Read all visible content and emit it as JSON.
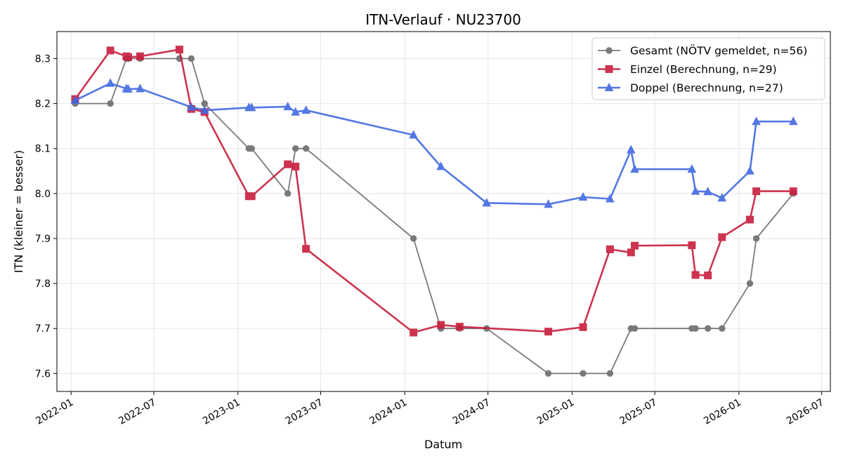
{
  "chart_data": {
    "type": "line",
    "title": "ITN-Verlauf · NU23700",
    "xlabel": "Datum",
    "ylabel": "ITN  (kleiner = besser)",
    "xlim": [
      "2021-12-01",
      "2026-07-20"
    ],
    "ylim": [
      7.56,
      8.36
    ],
    "x_ticks": [
      "2022-01",
      "2022-07",
      "2023-01",
      "2023-07",
      "2024-01",
      "2024-07",
      "2025-01",
      "2025-07",
      "2026-01",
      "2026-07"
    ],
    "y_ticks": [
      "7.6",
      "7.7",
      "7.8",
      "7.9",
      "8.0",
      "8.1",
      "8.2",
      "8.3"
    ],
    "grid": true,
    "legend_position": "top-right",
    "series": [
      {
        "name": "Gesamt (NÖTV gemeldet, n=56)",
        "color": "#555555",
        "marker": "circle",
        "points": [
          [
            "2022-01-10",
            8.2
          ],
          [
            "2022-03-28",
            8.2
          ],
          [
            "2022-05-02",
            8.3
          ],
          [
            "2022-05-06",
            8.3
          ],
          [
            "2022-06-01",
            8.3
          ],
          [
            "2022-08-26",
            8.3
          ],
          [
            "2022-09-21",
            8.3
          ],
          [
            "2022-10-20",
            8.2
          ],
          [
            "2023-01-25",
            8.1
          ],
          [
            "2023-01-31",
            8.1
          ],
          [
            "2023-04-20",
            8.0
          ],
          [
            "2023-05-07",
            8.1
          ],
          [
            "2023-05-30",
            8.1
          ],
          [
            "2024-01-20",
            7.9
          ],
          [
            "2024-03-20",
            7.7
          ],
          [
            "2024-04-30",
            7.7
          ],
          [
            "2024-06-28",
            7.7
          ],
          [
            "2024-11-10",
            7.6
          ],
          [
            "2025-01-25",
            7.6
          ],
          [
            "2025-03-25",
            7.6
          ],
          [
            "2025-05-10",
            7.7
          ],
          [
            "2025-05-18",
            7.7
          ],
          [
            "2025-09-20",
            7.7
          ],
          [
            "2025-09-28",
            7.7
          ],
          [
            "2025-10-25",
            7.7
          ],
          [
            "2025-11-25",
            7.7
          ],
          [
            "2026-01-25",
            7.8
          ],
          [
            "2026-02-08",
            7.9
          ],
          [
            "2026-04-30",
            8.0
          ]
        ]
      },
      {
        "name": "Einzel (Berechnung, n=29)",
        "color": "#c81e3c",
        "marker": "square",
        "points": [
          [
            "2022-01-10",
            8.21
          ],
          [
            "2022-03-28",
            8.318
          ],
          [
            "2022-05-02",
            8.305
          ],
          [
            "2022-05-06",
            8.303
          ],
          [
            "2022-06-01",
            8.305
          ],
          [
            "2022-08-26",
            8.32
          ],
          [
            "2022-09-21",
            8.188
          ],
          [
            "2022-10-20",
            8.181
          ],
          [
            "2023-01-25",
            7.994
          ],
          [
            "2023-01-31",
            7.994
          ],
          [
            "2023-04-20",
            8.065
          ],
          [
            "2023-05-07",
            8.06
          ],
          [
            "2023-05-30",
            7.877
          ],
          [
            "2024-01-20",
            7.691
          ],
          [
            "2024-03-20",
            7.708
          ],
          [
            "2024-04-30",
            7.704
          ],
          [
            "2024-11-10",
            7.693
          ],
          [
            "2025-01-25",
            7.703
          ],
          [
            "2025-03-25",
            7.876
          ],
          [
            "2025-05-10",
            7.869
          ],
          [
            "2025-05-18",
            7.884
          ],
          [
            "2025-09-20",
            7.885
          ],
          [
            "2025-09-28",
            7.819
          ],
          [
            "2025-10-25",
            7.818
          ],
          [
            "2025-11-25",
            7.903
          ],
          [
            "2026-01-25",
            7.942
          ],
          [
            "2026-02-08",
            8.005
          ],
          [
            "2026-04-30",
            8.005
          ]
        ]
      },
      {
        "name": "Doppel (Berechnung, n=27)",
        "color": "#4169e1",
        "marker": "triangle",
        "points": [
          [
            "2022-01-10",
            8.207
          ],
          [
            "2022-03-28",
            8.245
          ],
          [
            "2022-05-02",
            8.233
          ],
          [
            "2022-05-06",
            8.232
          ],
          [
            "2022-06-01",
            8.233
          ],
          [
            "2022-09-21",
            8.192
          ],
          [
            "2022-10-20",
            8.185
          ],
          [
            "2023-01-25",
            8.191
          ],
          [
            "2023-01-31",
            8.191
          ],
          [
            "2023-04-20",
            8.193
          ],
          [
            "2023-05-07",
            8.181
          ],
          [
            "2023-05-30",
            8.185
          ],
          [
            "2024-01-20",
            8.13
          ],
          [
            "2024-03-20",
            8.06
          ],
          [
            "2024-06-28",
            7.979
          ],
          [
            "2024-11-10",
            7.976
          ],
          [
            "2025-01-25",
            7.992
          ],
          [
            "2025-03-25",
            7.988
          ],
          [
            "2025-05-10",
            8.097
          ],
          [
            "2025-05-18",
            8.054
          ],
          [
            "2025-09-20",
            8.054
          ],
          [
            "2025-09-28",
            8.005
          ],
          [
            "2025-10-25",
            8.004
          ],
          [
            "2025-11-25",
            7.99
          ],
          [
            "2026-01-25",
            8.05
          ],
          [
            "2026-02-08",
            8.16
          ],
          [
            "2026-04-30",
            8.16
          ]
        ]
      }
    ]
  }
}
